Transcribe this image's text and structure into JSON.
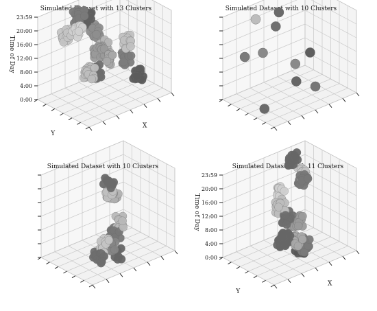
{
  "chart_data": [
    {
      "type": "scatter3d",
      "title": "Simulated Dataset with 13 Clusters",
      "xlabel": "X",
      "ylabel": "Y",
      "zlabel": "Time of Day",
      "zticks": [
        "0:00",
        "4:00",
        "8:00",
        "12:00",
        "16:00",
        "20:00",
        "23:59"
      ],
      "n_clusters": 13,
      "clusters": [
        {
          "x": 0.12,
          "y": 0.2,
          "z": 13.0,
          "shade": "#bdbdbd",
          "n": 30
        },
        {
          "x": 0.28,
          "y": 0.9,
          "z": 16.8,
          "shade": "#c4c4c4",
          "n": 18
        },
        {
          "x": 0.45,
          "y": 0.92,
          "z": 20.2,
          "shade": "#7a7a7a",
          "n": 22
        },
        {
          "x": 0.55,
          "y": 0.95,
          "z": 18.5,
          "shade": "#5f5f5f",
          "n": 24
        },
        {
          "x": 0.62,
          "y": 0.9,
          "z": 14.5,
          "shade": "#8e8e8e",
          "n": 20
        },
        {
          "x": 0.5,
          "y": 0.6,
          "z": 12.0,
          "shade": "#9a9a9a",
          "n": 20
        },
        {
          "x": 0.58,
          "y": 0.55,
          "z": 9.5,
          "shade": "#a8a8a8",
          "n": 18
        },
        {
          "x": 0.4,
          "y": 0.5,
          "z": 8.0,
          "shade": "#6e6e6e",
          "n": 16
        },
        {
          "x": 0.68,
          "y": 0.35,
          "z": 15.5,
          "shade": "#c0c0c0",
          "n": 14
        },
        {
          "x": 0.85,
          "y": 0.65,
          "z": 6.0,
          "shade": "#7c7c7c",
          "n": 16
        },
        {
          "x": 0.9,
          "y": 0.5,
          "z": 2.2,
          "shade": "#5c5c5c",
          "n": 18
        },
        {
          "x": 0.7,
          "y": 0.85,
          "z": 10.5,
          "shade": "#b5b5b5",
          "n": 16
        },
        {
          "x": 0.33,
          "y": 0.75,
          "z": 19.0,
          "shade": "#d0d0d0",
          "n": 14
        }
      ]
    },
    {
      "type": "scatter3d",
      "title": "Simulated Dataset with 10 Clusters",
      "n_clusters": 10,
      "clusters": [
        {
          "x": 0.35,
          "y": 0.92,
          "z": 20.5,
          "shade": "#bdbdbd",
          "n": 3
        },
        {
          "x": 0.62,
          "y": 0.9,
          "z": 20.0,
          "shade": "#6a6a6a",
          "n": 3
        },
        {
          "x": 0.55,
          "y": 0.85,
          "z": 17.0,
          "shade": "#707070",
          "n": 3
        },
        {
          "x": 0.08,
          "y": 0.7,
          "z": 14.0,
          "shade": "#7a7a7a",
          "n": 3
        },
        {
          "x": 0.3,
          "y": 0.7,
          "z": 13.0,
          "shade": "#8a8a8a",
          "n": 3
        },
        {
          "x": 0.78,
          "y": 0.55,
          "z": 9.5,
          "shade": "#5e5e5e",
          "n": 3
        },
        {
          "x": 0.6,
          "y": 0.55,
          "z": 8.0,
          "shade": "#8a8a8a",
          "n": 3
        },
        {
          "x": 0.55,
          "y": 0.45,
          "z": 4.2,
          "shade": "#666666",
          "n": 3
        },
        {
          "x": 0.72,
          "y": 0.35,
          "z": 1.8,
          "shade": "#777777",
          "n": 3
        },
        {
          "x": 0.1,
          "y": 0.35,
          "z": 1.5,
          "shade": "#6a6a6a",
          "n": 3
        }
      ]
    },
    {
      "type": "scatter3d",
      "title": "Simulated Dataset with 10 Clusters",
      "n_clusters": 10,
      "clusters": [
        {
          "x": 0.3,
          "y": 0.25,
          "z": 6.5,
          "shade": "#c4c4c4",
          "n": 16
        },
        {
          "x": 0.22,
          "y": 0.25,
          "z": 3.5,
          "shade": "#6e6e6e",
          "n": 16
        },
        {
          "x": 0.48,
          "y": 0.3,
          "z": 2.0,
          "shade": "#666666",
          "n": 14
        },
        {
          "x": 0.62,
          "y": 0.55,
          "z": 4.5,
          "shade": "#777777",
          "n": 20
        },
        {
          "x": 0.68,
          "y": 0.55,
          "z": 7.5,
          "shade": "#b8b8b8",
          "n": 14
        },
        {
          "x": 0.7,
          "y": 0.8,
          "z": 16.0,
          "shade": "#6a6a6a",
          "n": 14
        },
        {
          "x": 0.72,
          "y": 0.85,
          "z": 13.0,
          "shade": "#c0c0c0",
          "n": 12
        },
        {
          "x": 0.78,
          "y": 0.9,
          "z": 12.0,
          "shade": "#999999",
          "n": 12
        },
        {
          "x": 0.85,
          "y": 0.92,
          "z": 10.5,
          "shade": "#b0b0b0",
          "n": 10
        },
        {
          "x": 0.4,
          "y": 0.28,
          "z": 5.0,
          "shade": "#858585",
          "n": 10
        }
      ]
    },
    {
      "type": "scatter3d",
      "title": "Simulated Dataset with 11 Clusters",
      "xlabel": "X",
      "ylabel": "Y",
      "zlabel": "Time of Day",
      "zticks": [
        "0:00",
        "4:00",
        "8:00",
        "12:00",
        "16:00",
        "20:00",
        "23:59"
      ],
      "n_clusters": 11,
      "clusters": [
        {
          "x": 0.82,
          "y": 0.92,
          "z": 21.0,
          "shade": "#666666",
          "n": 16
        },
        {
          "x": 0.9,
          "y": 0.88,
          "z": 16.5,
          "shade": "#c4c4c4",
          "n": 14
        },
        {
          "x": 0.88,
          "y": 0.82,
          "z": 15.0,
          "shade": "#777777",
          "n": 14
        },
        {
          "x": 0.35,
          "y": 0.45,
          "z": 16.0,
          "shade": "#bdbdbd",
          "n": 18
        },
        {
          "x": 0.42,
          "y": 0.42,
          "z": 12.0,
          "shade": "#6e6e6e",
          "n": 26
        },
        {
          "x": 0.3,
          "y": 0.3,
          "z": 8.0,
          "shade": "#666666",
          "n": 26
        },
        {
          "x": 0.45,
          "y": 0.28,
          "z": 6.0,
          "shade": "#a8a8a8",
          "n": 22
        },
        {
          "x": 0.5,
          "y": 0.35,
          "z": 10.5,
          "shade": "#9a9a9a",
          "n": 18
        },
        {
          "x": 0.55,
          "y": 0.3,
          "z": 4.0,
          "shade": "#7a7a7a",
          "n": 18
        },
        {
          "x": 0.38,
          "y": 0.5,
          "z": 19.0,
          "shade": "#cfcfcf",
          "n": 12
        },
        {
          "x": 0.58,
          "y": 0.4,
          "z": 2.0,
          "shade": "#555555",
          "n": 14
        }
      ]
    }
  ]
}
